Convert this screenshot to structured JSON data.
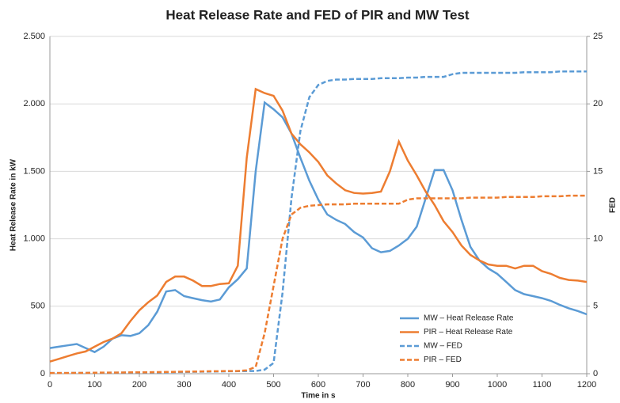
{
  "chart_data": {
    "type": "line",
    "title": "Heat Release Rate and FED of PIR and MW Test",
    "x_label": "Time in s",
    "y_label": "Heat Release Rate in kW",
    "y2_label": "FED",
    "x": [
      0,
      20,
      40,
      60,
      80,
      100,
      120,
      140,
      160,
      180,
      200,
      220,
      240,
      260,
      280,
      300,
      320,
      340,
      360,
      380,
      400,
      420,
      440,
      460,
      480,
      500,
      520,
      540,
      560,
      580,
      600,
      620,
      640,
      660,
      680,
      700,
      720,
      740,
      760,
      780,
      800,
      820,
      840,
      860,
      880,
      900,
      920,
      940,
      960,
      980,
      1000,
      1020,
      1040,
      1060,
      1080,
      1100,
      1120,
      1140,
      1160,
      1180,
      1200
    ],
    "xlim": [
      0,
      1200
    ],
    "xticks": [
      0,
      100,
      200,
      300,
      400,
      500,
      600,
      700,
      800,
      900,
      1000,
      1100,
      1200
    ],
    "ylim": [
      0,
      2500
    ],
    "yticks": [
      0,
      500,
      {
        "value": 1000,
        "label": "1.000"
      },
      {
        "value": 1500,
        "label": "1.500"
      },
      {
        "value": 2000,
        "label": "2.000"
      },
      {
        "value": 2500,
        "label": "2.500"
      }
    ],
    "y2lim": [
      0,
      25
    ],
    "y2ticks": [
      0,
      5,
      10,
      15,
      20,
      25
    ],
    "grid": true,
    "legend": "lower right",
    "series": [
      {
        "name": "MW – Heat Release Rate",
        "color": "#5b9bd5",
        "line_style": "solid",
        "values": [
          190,
          200,
          210,
          220,
          190,
          160,
          200,
          260,
          285,
          280,
          300,
          360,
          460,
          610,
          620,
          575,
          560,
          545,
          535,
          550,
          640,
          700,
          780,
          1500,
          2010,
          1960,
          1900,
          1780,
          1600,
          1430,
          1290,
          1180,
          1140,
          1110,
          1050,
          1010,
          930,
          900,
          910,
          950,
          1000,
          1090,
          1300,
          1510,
          1510,
          1360,
          1140,
          940,
          840,
          780,
          740,
          680,
          620,
          590,
          575,
          560,
          540,
          510,
          485,
          465,
          440
        ]
      },
      {
        "name": "PIR – Heat Release Rate",
        "color": "#ed7d31",
        "line_style": "solid",
        "values": [
          90,
          110,
          130,
          150,
          165,
          200,
          235,
          260,
          300,
          390,
          470,
          530,
          580,
          680,
          720,
          720,
          690,
          650,
          650,
          665,
          670,
          800,
          1600,
          2110,
          2080,
          2060,
          1950,
          1780,
          1700,
          1640,
          1570,
          1470,
          1410,
          1360,
          1340,
          1335,
          1340,
          1350,
          1500,
          1720,
          1580,
          1470,
          1350,
          1250,
          1130,
          1050,
          950,
          880,
          840,
          810,
          800,
          800,
          780,
          800,
          800,
          760,
          740,
          710,
          695,
          690,
          680
        ]
      },
      {
        "name": "MW – FED",
        "color": "#5b9bd5",
        "line_style": "dashed",
        "axis": "y2",
        "values": [
          0.05,
          0.05,
          0.05,
          0.06,
          0.06,
          0.07,
          0.07,
          0.08,
          0.08,
          0.09,
          0.09,
          0.1,
          0.1,
          0.11,
          0.12,
          0.13,
          0.14,
          0.15,
          0.16,
          0.17,
          0.18,
          0.19,
          0.2,
          0.2,
          0.3,
          0.8,
          6,
          13,
          18,
          20.5,
          21.4,
          21.7,
          21.8,
          21.8,
          21.85,
          21.85,
          21.85,
          21.9,
          21.9,
          21.9,
          21.95,
          21.95,
          22,
          22,
          22,
          22.2,
          22.3,
          22.3,
          22.3,
          22.3,
          22.3,
          22.3,
          22.3,
          22.35,
          22.35,
          22.35,
          22.35,
          22.4,
          22.4,
          22.4,
          22.4
        ]
      },
      {
        "name": "PIR – FED",
        "color": "#ed7d31",
        "line_style": "dashed",
        "axis": "y2",
        "values": [
          0.05,
          0.05,
          0.05,
          0.06,
          0.06,
          0.07,
          0.08,
          0.08,
          0.09,
          0.1,
          0.1,
          0.11,
          0.12,
          0.13,
          0.14,
          0.15,
          0.16,
          0.17,
          0.18,
          0.19,
          0.2,
          0.2,
          0.25,
          0.5,
          3,
          6.5,
          10,
          11.8,
          12.3,
          12.45,
          12.5,
          12.55,
          12.55,
          12.55,
          12.6,
          12.6,
          12.6,
          12.6,
          12.6,
          12.6,
          12.9,
          13,
          13,
          13,
          13,
          13,
          13,
          13.05,
          13.05,
          13.05,
          13.05,
          13.1,
          13.1,
          13.1,
          13.1,
          13.15,
          13.15,
          13.15,
          13.2,
          13.2,
          13.2
        ]
      }
    ]
  }
}
